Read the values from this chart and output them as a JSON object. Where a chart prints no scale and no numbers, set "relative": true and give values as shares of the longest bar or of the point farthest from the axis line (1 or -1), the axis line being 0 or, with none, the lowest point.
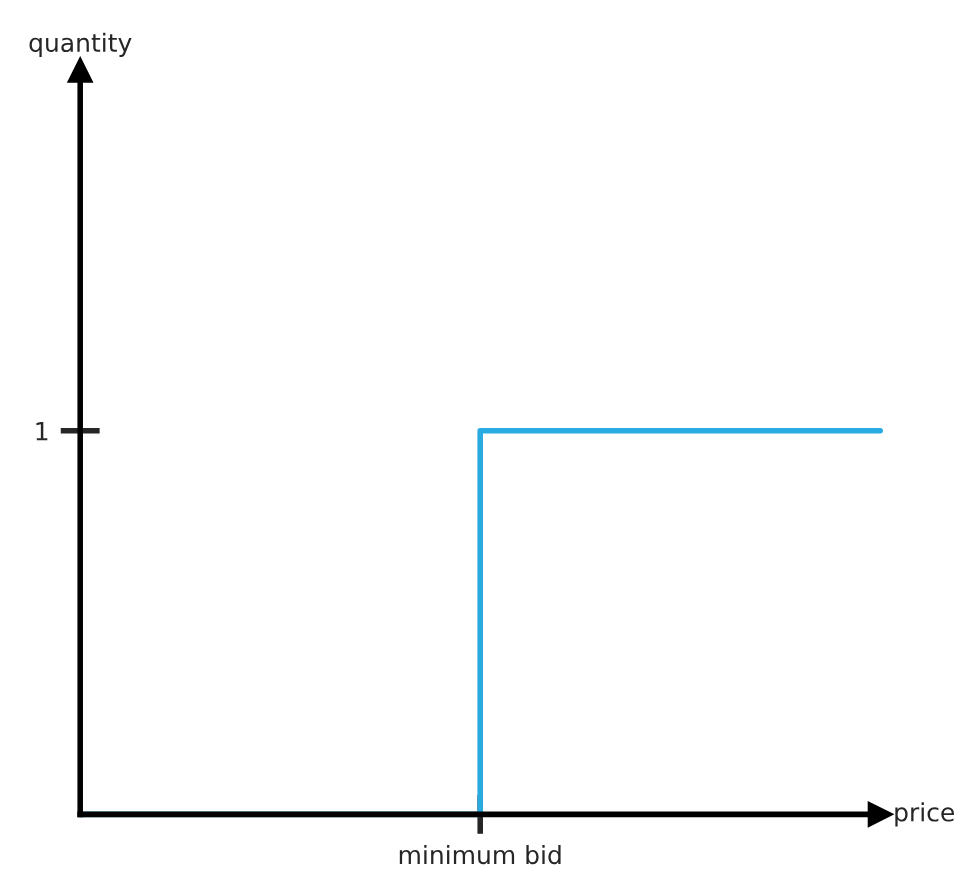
{
  "chart_data": {
    "type": "step",
    "xlabel": "price",
    "relative": true,
    "categories": [
      null,
      null,
      null
    ],
    "series": [
      {
        "color": "#29abe2",
        "values": [
          0,
          1,
          1
        ]
      }
    ],
    "annotations": [
      "1",
      "minimum bid",
      "quantity"
    ],
    "grid": false,
    "legend": false,
    "marker": "none",
    "line_style": "solid"
  }
}
